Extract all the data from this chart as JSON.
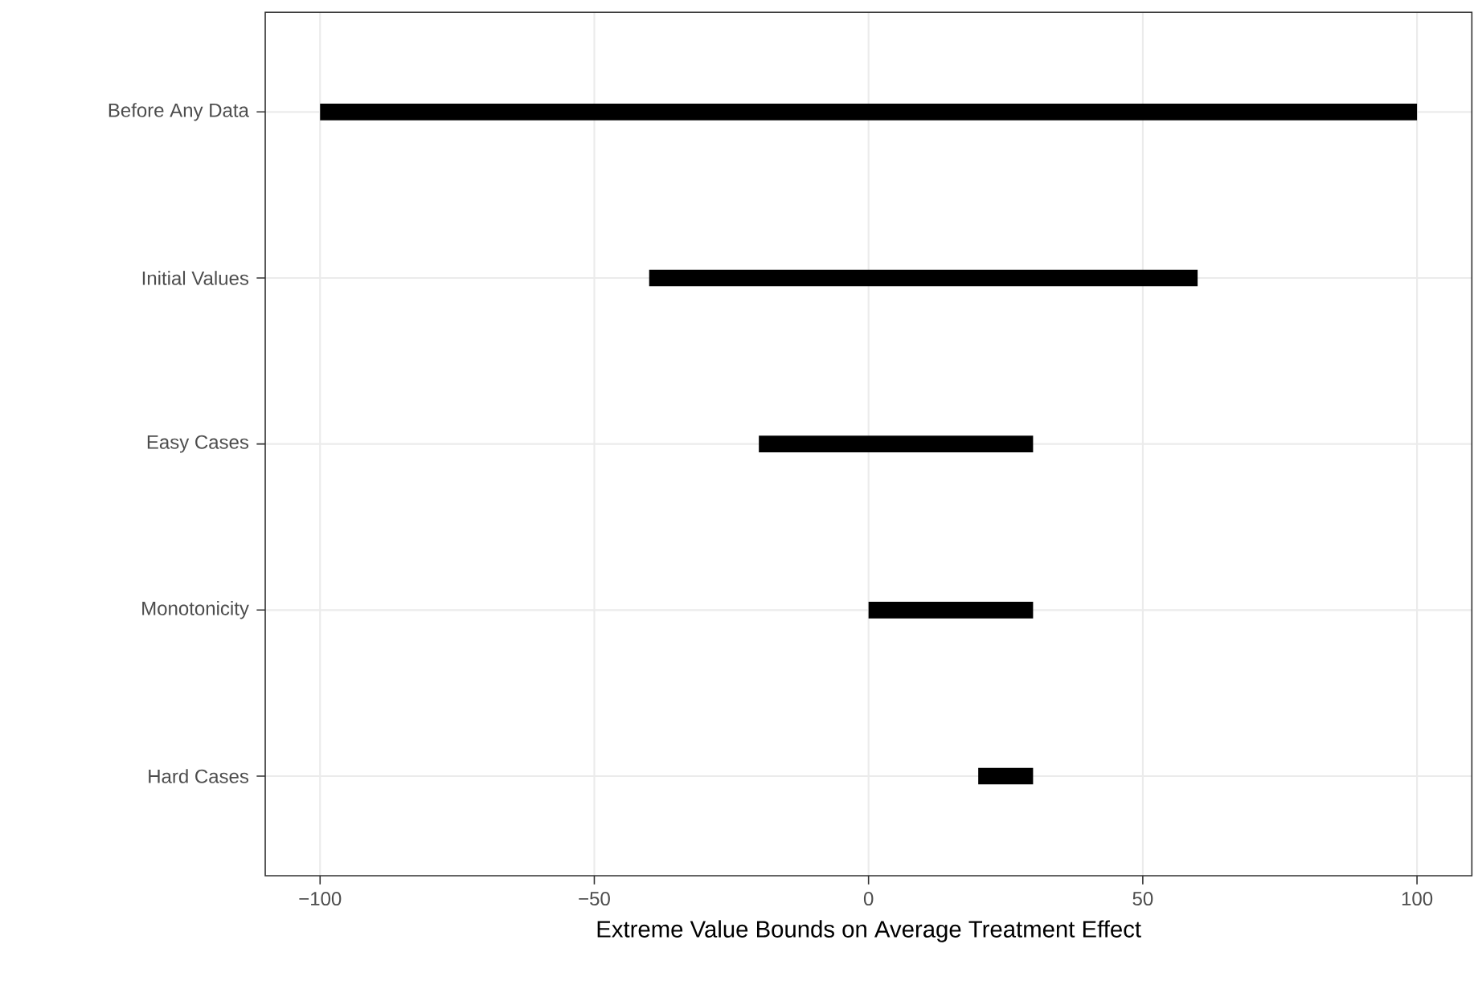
{
  "chart_data": {
    "type": "bar",
    "orientation": "horizontal",
    "categories": [
      "Before Any Data",
      "Initial Values",
      "Easy Cases",
      "Monotonicity",
      "Hard Cases"
    ],
    "base": [
      -100,
      -40,
      -20,
      0,
      20
    ],
    "values": [
      200,
      100,
      50,
      30,
      10
    ],
    "color": "#000000",
    "xlabel": "Extreme Value Bounds on Average Treatment Effect",
    "xlim": [
      -110,
      110
    ],
    "xticks": [
      {
        "value": -100,
        "label": "−100"
      },
      {
        "value": -50,
        "label": "−50"
      },
      {
        "value": 0,
        "label": "0"
      },
      {
        "value": 50,
        "label": "50"
      },
      {
        "value": 100,
        "label": "100"
      }
    ],
    "grid": true
  }
}
